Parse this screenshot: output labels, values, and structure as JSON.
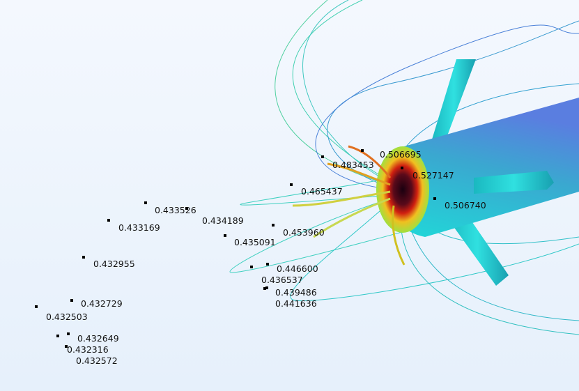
{
  "graphics": {
    "colors": {
      "background_top": "#f4f8fe",
      "background_bottom": "#e6f0fb",
      "hot": "#3a0a1a",
      "warm": "#e02010",
      "mid": "#f4e020",
      "cool": "#30d8d0",
      "cold": "#5070e0"
    },
    "point_values": [
      "0.506695",
      "0.483453",
      "0.527147",
      "0.465437",
      "0.506740",
      "0.433526",
      "0.434189",
      "0.433169",
      "0.453960",
      "0.435091",
      "0.446600",
      "0.436537",
      "0.432955",
      "0.439486",
      "0.441636",
      "0.432729",
      "0.432503",
      "0.432649",
      "0.432316",
      "0.432572"
    ]
  }
}
